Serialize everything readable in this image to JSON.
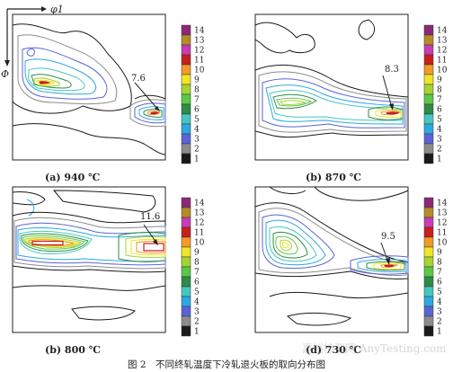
{
  "figure_caption": "图 2　不同终轧温度下冷轧退火板的取向分布图",
  "axis_phi1": "φ1",
  "axis_Phi": "Φ",
  "watermark": "嘉峪检测网 AnyTesting.com",
  "chart_data": [
    {
      "type": "heatmap",
      "panel_label": "(a) 940 ℃",
      "colorbar_levels": [
        1,
        2,
        3,
        4,
        5,
        6,
        7,
        8,
        9,
        10,
        11,
        12,
        13,
        14
      ],
      "annotations": [
        {
          "text": "7.6",
          "value": 7.6
        }
      ]
    },
    {
      "type": "heatmap",
      "panel_label": "(b) 870 ℃",
      "colorbar_levels": [
        1,
        2,
        3,
        4,
        5,
        6,
        7,
        8,
        9,
        10,
        11,
        12,
        13,
        14
      ],
      "annotations": [
        {
          "text": "8.3",
          "value": 8.3
        }
      ]
    },
    {
      "type": "heatmap",
      "panel_label": "(b) 800 ℃",
      "colorbar_levels": [
        1,
        2,
        3,
        4,
        5,
        6,
        7,
        8,
        9,
        10,
        11,
        12,
        13,
        14
      ],
      "annotations": [
        {
          "text": "11.6",
          "value": 11.6
        }
      ]
    },
    {
      "type": "heatmap",
      "panel_label": "(d) 730 ℃",
      "colorbar_levels": [
        1,
        2,
        3,
        4,
        5,
        6,
        7,
        8,
        9,
        10,
        11,
        12,
        13,
        14
      ],
      "annotations": [
        {
          "text": "9.5",
          "value": 9.5
        }
      ]
    }
  ],
  "colors": {
    "levels": [
      "#1a1a1a",
      "#8c8c8c",
      "#5a64d8",
      "#2ea8e0",
      "#46c8c0",
      "#2e8c46",
      "#5cc84a",
      "#a6d432",
      "#f0e628",
      "#f29a28",
      "#c81e1e",
      "#c83cb4",
      "#b48c28",
      "#8c2878"
    ],
    "frame": "#1a1a1a"
  }
}
